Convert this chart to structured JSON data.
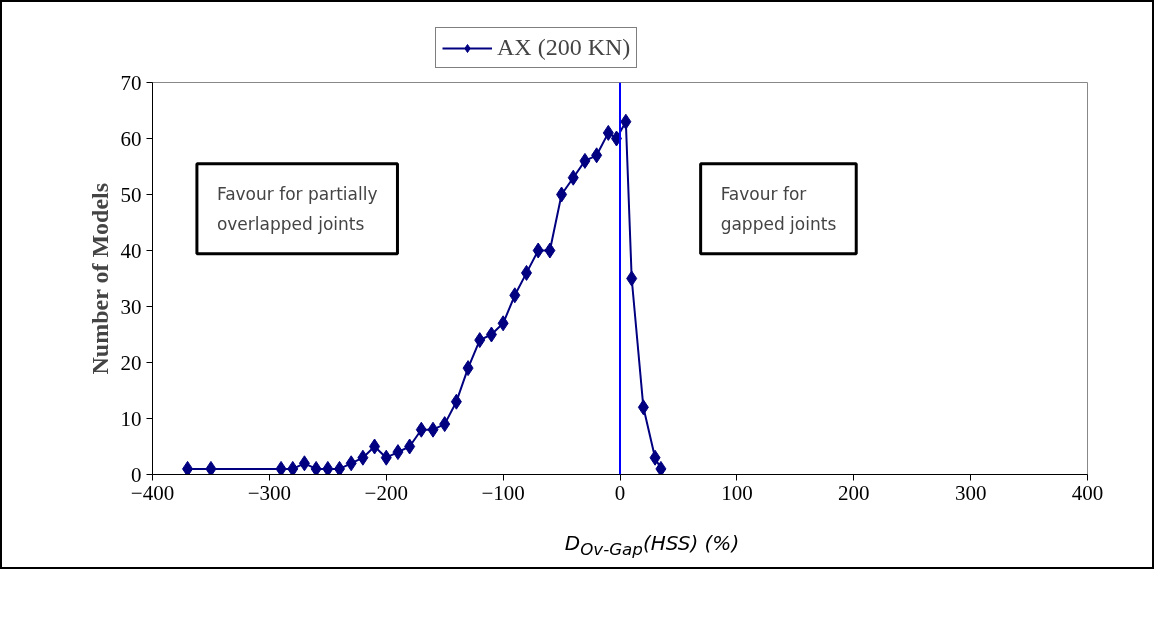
{
  "chart_data": {
    "type": "line",
    "xlabel": "D$_{Ov-Gap}$(HSS) (%)",
    "ylabel": "Number of Models",
    "x": [
      -370,
      -350,
      -290,
      -280,
      -270,
      -260,
      -250,
      -240,
      -230,
      -220,
      -210,
      -200,
      -190,
      -180,
      -170,
      -160,
      -150,
      -140,
      -130,
      -120,
      -110,
      -100,
      -90,
      -80,
      -70,
      -60,
      -50,
      -40,
      -30,
      -20,
      -10,
      -3,
      5,
      10,
      20,
      30,
      35
    ],
    "series": [
      {
        "name": "AX (200 KN)",
        "color": "#000080",
        "values": [
          1,
          1,
          1,
          1,
          2,
          1,
          1,
          1,
          2,
          3,
          5,
          3,
          4,
          5,
          8,
          8,
          9,
          13,
          19,
          24,
          25,
          27,
          32,
          36,
          40,
          40,
          50,
          53,
          56,
          57,
          61,
          60,
          63,
          35,
          12,
          3,
          1
        ]
      }
    ],
    "xlim": [
      -400,
      400
    ],
    "xticks": [
      -400,
      -300,
      -200,
      -100,
      0,
      100,
      200,
      300,
      400
    ],
    "ylim": [
      0,
      70
    ],
    "yticks": [
      0,
      10,
      20,
      30,
      40,
      50,
      60,
      70
    ],
    "ref_lines": [
      {
        "axis": "x",
        "value": 0,
        "color": "#0000ff"
      }
    ],
    "annotations": [
      "Favour for partially\noverlapped joints",
      "Favour for\ngapped joints"
    ],
    "marker": "diamond",
    "grid": false,
    "legend": "top"
  }
}
